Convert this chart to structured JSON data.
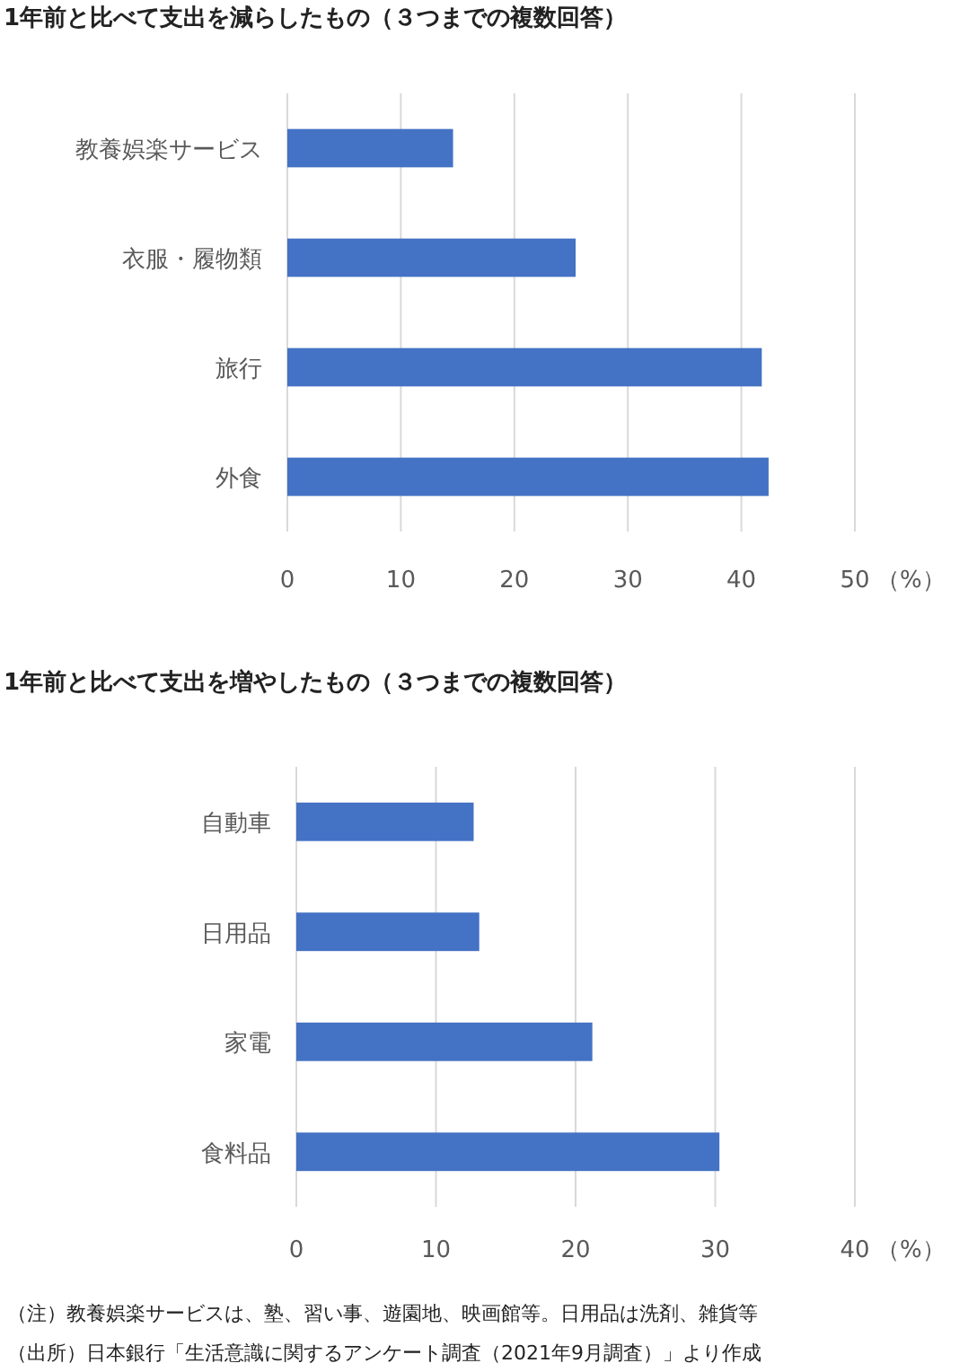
{
  "chart_data": [
    {
      "type": "bar",
      "orientation": "horizontal",
      "title": "1年前と比べて支出を減らしたもの（３つまでの複数回答）",
      "xlabel": "（%）",
      "categories": [
        "教養娯楽サービス",
        "衣服・履物類",
        "旅行",
        "外食"
      ],
      "series": [
        {
          "color": "#4472c4",
          "values": [
            14.6,
            25.4,
            41.8,
            42.4
          ]
        }
      ],
      "xlim": [
        0,
        50
      ],
      "xticks": [
        0,
        10,
        20,
        30,
        40,
        50
      ],
      "grid": "x"
    },
    {
      "type": "bar",
      "orientation": "horizontal",
      "title": "1年前と比べて支出を増やしたもの（３つまでの複数回答）",
      "xlabel": "（%）",
      "categories": [
        "自動車",
        "日用品",
        "家電",
        "食料品"
      ],
      "series": [
        {
          "color": "#4472c4",
          "values": [
            12.7,
            13.1,
            21.2,
            30.3
          ]
        }
      ],
      "xlim": [
        0,
        40
      ],
      "xticks": [
        0,
        10,
        20,
        30,
        40
      ],
      "grid": "x",
      "annotations": [
        "（注）教養娯楽サービスは、塾、習い事、遊園地、映画館等。日用品は洗剤、雑貨等",
        "（出所）日本銀行「生活意識に関するアンケート調査（2021年9月調査）」より作成"
      ]
    }
  ]
}
